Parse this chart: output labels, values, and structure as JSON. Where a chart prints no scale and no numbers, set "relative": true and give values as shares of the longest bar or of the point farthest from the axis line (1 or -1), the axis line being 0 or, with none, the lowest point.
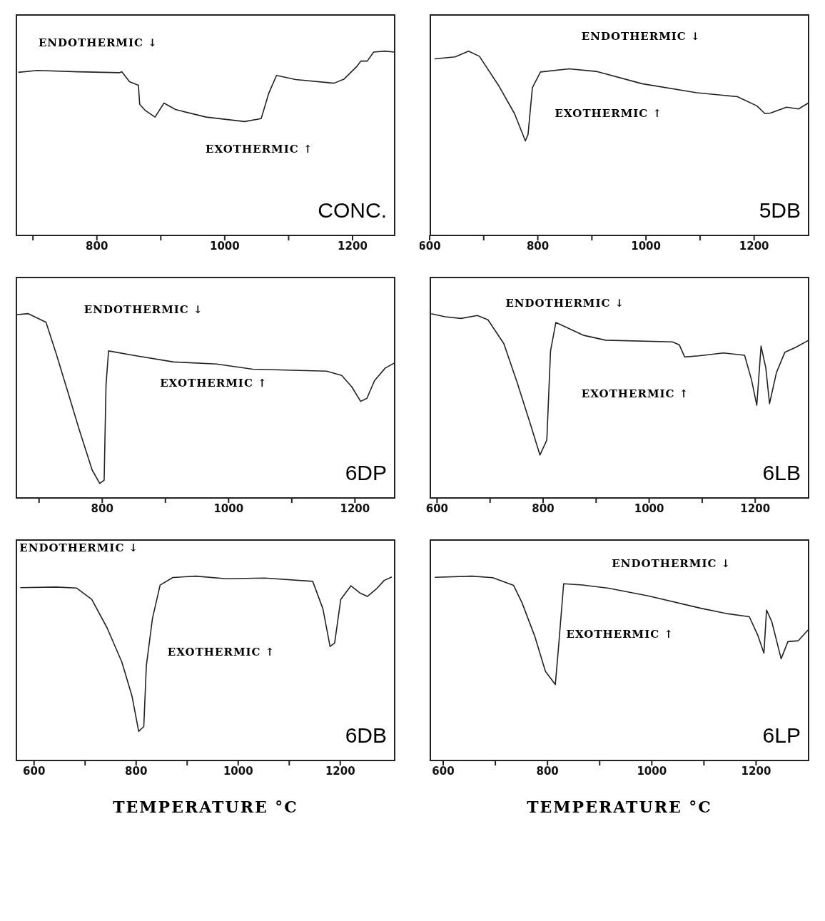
{
  "chart_data": [
    {
      "type": "line",
      "relative": true,
      "tick_labels": "x",
      "marker": "none",
      "annotations": [
        "ENDOTHERMIC ↓",
        "EXOTHERMIC ↑",
        "CONC."
      ],
      "xlim": [
        673,
        1267
      ],
      "xticks": [
        {
          "value": 700,
          "label": null
        },
        800,
        {
          "value": 900,
          "label": null
        },
        1000,
        {
          "value": 1100,
          "label": null
        },
        1200
      ],
      "series": [
        {
          "color": "#222222",
          "x": [
            677,
            707,
            771,
            835,
            839,
            851,
            865,
            867,
            875,
            891,
            905,
            923,
            971,
            1031,
            1057,
            1069,
            1081,
            1111,
            1171,
            1187,
            1207,
            1213,
            1223,
            1233,
            1251,
            1265
          ],
          "values": [
            0.885,
            0.895,
            0.888,
            0.883,
            0.888,
            0.834,
            0.815,
            0.711,
            0.68,
            0.642,
            0.718,
            0.683,
            0.642,
            0.618,
            0.634,
            0.772,
            0.868,
            0.846,
            0.826,
            0.849,
            0.918,
            0.946,
            0.946,
            0.995,
            1.0,
            0.995
          ]
        }
      ]
    },
    {
      "type": "line",
      "relative": true,
      "tick_labels": "x",
      "marker": "none",
      "annotations": [
        "ENDOTHERMIC ↓",
        "EXOTHERMIC ↑",
        "5DB"
      ],
      "xlim": [
        600,
        1302
      ],
      "xticks": [
        600,
        {
          "value": 700,
          "label": null
        },
        800,
        {
          "value": 900,
          "label": null
        },
        1000,
        {
          "value": 1100,
          "label": null
        },
        1200
      ],
      "series": [
        {
          "color": "#222222",
          "x": [
            609,
            647,
            672,
            692,
            727,
            757,
            777,
            782,
            790,
            805,
            858,
            908,
            993,
            1094,
            1169,
            1205,
            1220,
            1230,
            1260,
            1282,
            1300
          ],
          "values": [
            0.958,
            0.969,
            1.0,
            0.972,
            0.816,
            0.661,
            0.513,
            0.548,
            0.802,
            0.887,
            0.904,
            0.89,
            0.823,
            0.774,
            0.753,
            0.703,
            0.661,
            0.664,
            0.696,
            0.686,
            0.718
          ]
        }
      ]
    },
    {
      "type": "line",
      "relative": true,
      "tick_labels": "x",
      "marker": "none",
      "annotations": [
        "ENDOTHERMIC ↓",
        "EXOTHERMIC ↑",
        "6DP"
      ],
      "xlim": [
        663,
        1264
      ],
      "xticks": [
        {
          "value": 700,
          "label": null
        },
        800,
        {
          "value": 900,
          "label": null
        },
        1000,
        {
          "value": 1100,
          "label": null
        },
        1200
      ],
      "series": [
        {
          "color": "#222222",
          "x": [
            665,
            683,
            711,
            727,
            744,
            764,
            784,
            796,
            803,
            806,
            810,
            852,
            913,
            981,
            1038,
            1155,
            1179,
            1195,
            1209,
            1219,
            1231,
            1248,
            1263
          ],
          "values": [
            0.995,
            1.0,
            0.953,
            0.784,
            0.592,
            0.366,
            0.152,
            0.079,
            0.096,
            0.614,
            0.798,
            0.772,
            0.738,
            0.727,
            0.699,
            0.688,
            0.665,
            0.603,
            0.524,
            0.541,
            0.637,
            0.705,
            0.733
          ]
        }
      ]
    },
    {
      "type": "line",
      "relative": true,
      "tick_labels": "x",
      "marker": "none",
      "annotations": [
        "ENDOTHERMIC ↓",
        "EXOTHERMIC ↑",
        "6LB"
      ],
      "xlim": [
        586,
        1302
      ],
      "xticks": [
        600,
        {
          "value": 700,
          "label": null
        },
        800,
        {
          "value": 900,
          "label": null
        },
        1000,
        {
          "value": 1100,
          "label": null
        },
        1200
      ],
      "series": [
        {
          "color": "#222222",
          "x": [
            589,
            615,
            645,
            676,
            696,
            726,
            751,
            777,
            794,
            807,
            814,
            824,
            877,
            918,
            1044,
            1057,
            1067,
            1094,
            1140,
            1180,
            1193,
            1203,
            1211,
            1220,
            1227,
            1240,
            1256,
            1276,
            1301
          ],
          "values": [
            1.0,
            0.983,
            0.974,
            0.99,
            0.967,
            0.837,
            0.627,
            0.392,
            0.233,
            0.314,
            0.797,
            0.952,
            0.882,
            0.856,
            0.847,
            0.83,
            0.765,
            0.771,
            0.787,
            0.774,
            0.641,
            0.503,
            0.824,
            0.706,
            0.512,
            0.68,
            0.791,
            0.817,
            0.856
          ]
        }
      ]
    },
    {
      "type": "line",
      "relative": true,
      "tick_labels": "x",
      "marker": "none",
      "xlabel": "TEMPERATURE °C",
      "annotations": [
        "ENDOTHERMIC ↓",
        "EXOTHERMIC ↑",
        "6DB"
      ],
      "xlim": [
        564,
        1308
      ],
      "xticks": [
        600,
        {
          "value": 700,
          "label": null
        },
        800,
        {
          "value": 900,
          "label": null
        },
        1000,
        {
          "value": 1100,
          "label": null
        },
        1200
      ],
      "series": [
        {
          "color": "#222222",
          "x": [
            573,
            643,
            683,
            713,
            743,
            772,
            792,
            805,
            815,
            820,
            832,
            847,
            872,
            917,
            977,
            1052,
            1146,
            1166,
            1180,
            1189,
            1201,
            1221,
            1238,
            1253,
            1271,
            1286,
            1301
          ],
          "values": [
            0.938,
            0.941,
            0.936,
            0.874,
            0.72,
            0.534,
            0.348,
            0.158,
            0.184,
            0.513,
            0.771,
            0.952,
            0.993,
            1.0,
            0.986,
            0.99,
            0.972,
            0.823,
            0.619,
            0.637,
            0.874,
            0.948,
            0.91,
            0.89,
            0.931,
            0.977,
            0.996
          ]
        }
      ]
    },
    {
      "type": "line",
      "relative": true,
      "tick_labels": "x",
      "marker": "none",
      "xlabel": "TEMPERATURE °C",
      "annotations": [
        "ENDOTHERMIC ↓",
        "EXOTHERMIC ↑",
        "6LP"
      ],
      "xlim": [
        574,
        1302
      ],
      "xticks": [
        600,
        {
          "value": 700,
          "label": null
        },
        800,
        {
          "value": 900,
          "label": null
        },
        1000,
        {
          "value": 1100,
          "label": null
        },
        1200
      ],
      "series": [
        {
          "color": "#222222",
          "x": [
            584,
            655,
            695,
            735,
            751,
            776,
            796,
            815,
            821,
            831,
            867,
            917,
            993,
            1094,
            1144,
            1187,
            1203,
            1215,
            1220,
            1230,
            1248,
            1261,
            1281,
            1301
          ],
          "values": [
            0.994,
            1.0,
            0.992,
            0.95,
            0.857,
            0.671,
            0.484,
            0.412,
            0.609,
            0.959,
            0.952,
            0.935,
            0.893,
            0.826,
            0.797,
            0.78,
            0.681,
            0.583,
            0.816,
            0.754,
            0.552,
            0.645,
            0.65,
            0.712
          ]
        }
      ]
    }
  ]
}
